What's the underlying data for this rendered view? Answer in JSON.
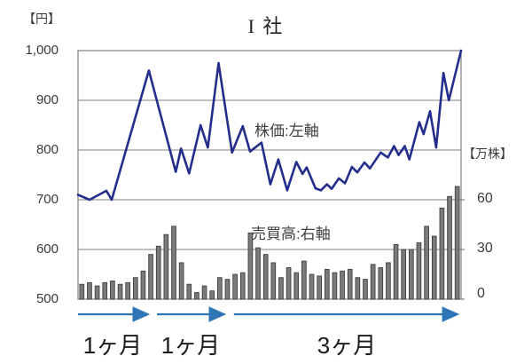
{
  "window": {
    "title": "I 社"
  },
  "chart_data": {
    "type": "combo",
    "title": "I 社",
    "left_axis": {
      "unit_label": "【円】",
      "tick_labels": [
        "1,000",
        "900",
        "800",
        "700",
        "600",
        "500"
      ],
      "tick_values": [
        1000,
        900,
        800,
        700,
        600,
        500
      ],
      "range": [
        500,
        1000
      ]
    },
    "right_axis": {
      "unit_label": "【万株】",
      "tick_labels": [
        "60",
        "30",
        "0"
      ],
      "tick_values": [
        60,
        30,
        0
      ],
      "range_at_plot_height": [
        0,
        150
      ]
    },
    "grid": "horizontal-on",
    "legend": "none",
    "series": [
      {
        "name": "株価",
        "annotation": "株価:左軸",
        "type": "line",
        "axis": "left",
        "color": "#232e8c",
        "x_pct": [
          0,
          3.0,
          7.4,
          8.8,
          18.5,
          25.5,
          26.9,
          29.0,
          32.0,
          33.9,
          36.7,
          40.2,
          43.0,
          44.9,
          47.9,
          50.2,
          52.3,
          54.6,
          57.0,
          58.6,
          59.7,
          62.0,
          63.4,
          65.0,
          66.2,
          68.1,
          69.7,
          71.5,
          72.9,
          74.8,
          76.2,
          79.0,
          80.9,
          82.5,
          83.7,
          85.3,
          86.5,
          89.1,
          90.2,
          91.9,
          93.5,
          95.4,
          96.8,
          100
        ],
        "values": [
          710,
          700,
          718,
          700,
          960,
          756,
          803,
          753,
          850,
          805,
          975,
          795,
          848,
          797,
          815,
          731,
          781,
          719,
          776,
          752,
          765,
          723,
          719,
          731,
          722,
          743,
          733,
          766,
          755,
          775,
          763,
          795,
          785,
          808,
          790,
          808,
          781,
          856,
          832,
          878,
          805,
          955,
          900,
          1000
        ]
      },
      {
        "name": "売買高",
        "annotation": "売買高:右軸",
        "type": "bar",
        "axis": "right",
        "color": "#7a7a7a",
        "stroke": "#3f3f3f",
        "values": [
          9,
          10,
          8,
          10,
          11,
          9,
          10,
          13,
          17,
          27,
          32,
          39,
          44,
          22,
          9,
          4,
          8,
          5,
          13,
          12,
          15,
          16,
          40,
          31,
          27,
          22,
          13,
          19,
          16,
          23,
          15,
          14,
          18,
          16,
          17,
          18,
          13,
          12,
          21,
          19,
          22,
          33,
          30,
          30,
          34,
          44,
          38,
          55,
          62,
          68
        ]
      }
    ],
    "periods": [
      {
        "label": "1ヶ月",
        "start_pct": 0.0,
        "end_pct": 19.2
      },
      {
        "label": "1ヶ月",
        "start_pct": 20.6,
        "end_pct": 39.1
      },
      {
        "label": "3ヶ月",
        "start_pct": 40.7,
        "end_pct": 100.0
      }
    ]
  },
  "colors": {
    "accent_arrow": "#2e75b6",
    "grid": "#808080",
    "price_line": "#232e8c",
    "bar_fill": "#7a7a7a",
    "bar_stroke": "#3f3f3f",
    "text": "#3a3a3a"
  }
}
